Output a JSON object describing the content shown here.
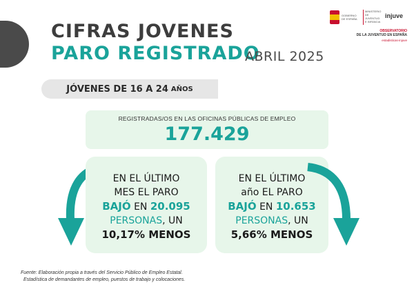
{
  "header": {
    "title_line1": "CIFRAS JOVENES",
    "title_line2": "PARO REGISTRADO",
    "date": "ABRIL 2025"
  },
  "logos": {
    "gov_text": "GOBIERNO DE ESPAÑA",
    "ministry_text": "MINISTERIO DE JUVENTUD E INFANCIA",
    "injuve": "injuve",
    "observatory_title": "OBSERVATORIO",
    "observatory_subtitle": "DE LA JUVENTUD EN ESPAÑA",
    "observatory_link": "estadisticas-injuve"
  },
  "age_range": {
    "main": "JÓVENES DE 16 A 24",
    "end": "AÑOS"
  },
  "total": {
    "label": "REGISTRADAS/OS EN LAS OFICINAS PÚBLICAS DE EMPLEO",
    "value": "177.429"
  },
  "monthly": {
    "line1": "EN EL ÚLTIMO",
    "line2": "MES EL PARO",
    "verb": "BAJÓ",
    "prep": " EN ",
    "amount": "20.095",
    "persons": "PERSONAS",
    "un": ", UN",
    "percent": "10,17% MENOS"
  },
  "yearly": {
    "line1": "EN EL ÚLTIMO",
    "line2": "año EL PARO",
    "verb": "BAJÓ",
    "prep": " EN ",
    "amount": "10.653",
    "persons": "PERSONAS",
    "un": ", UN",
    "percent": "5,66% MENOS"
  },
  "source": {
    "line1": "Fuente: Elaboración propia a través del Servicio Público de Empleo Estatal.",
    "line2": "Estadística de demandantes de empleo, puestos de trabajo y colocaciones."
  },
  "colors": {
    "teal": "#1aa39a",
    "card_bg": "#e7f6ea",
    "dark": "#3d3d3d"
  }
}
